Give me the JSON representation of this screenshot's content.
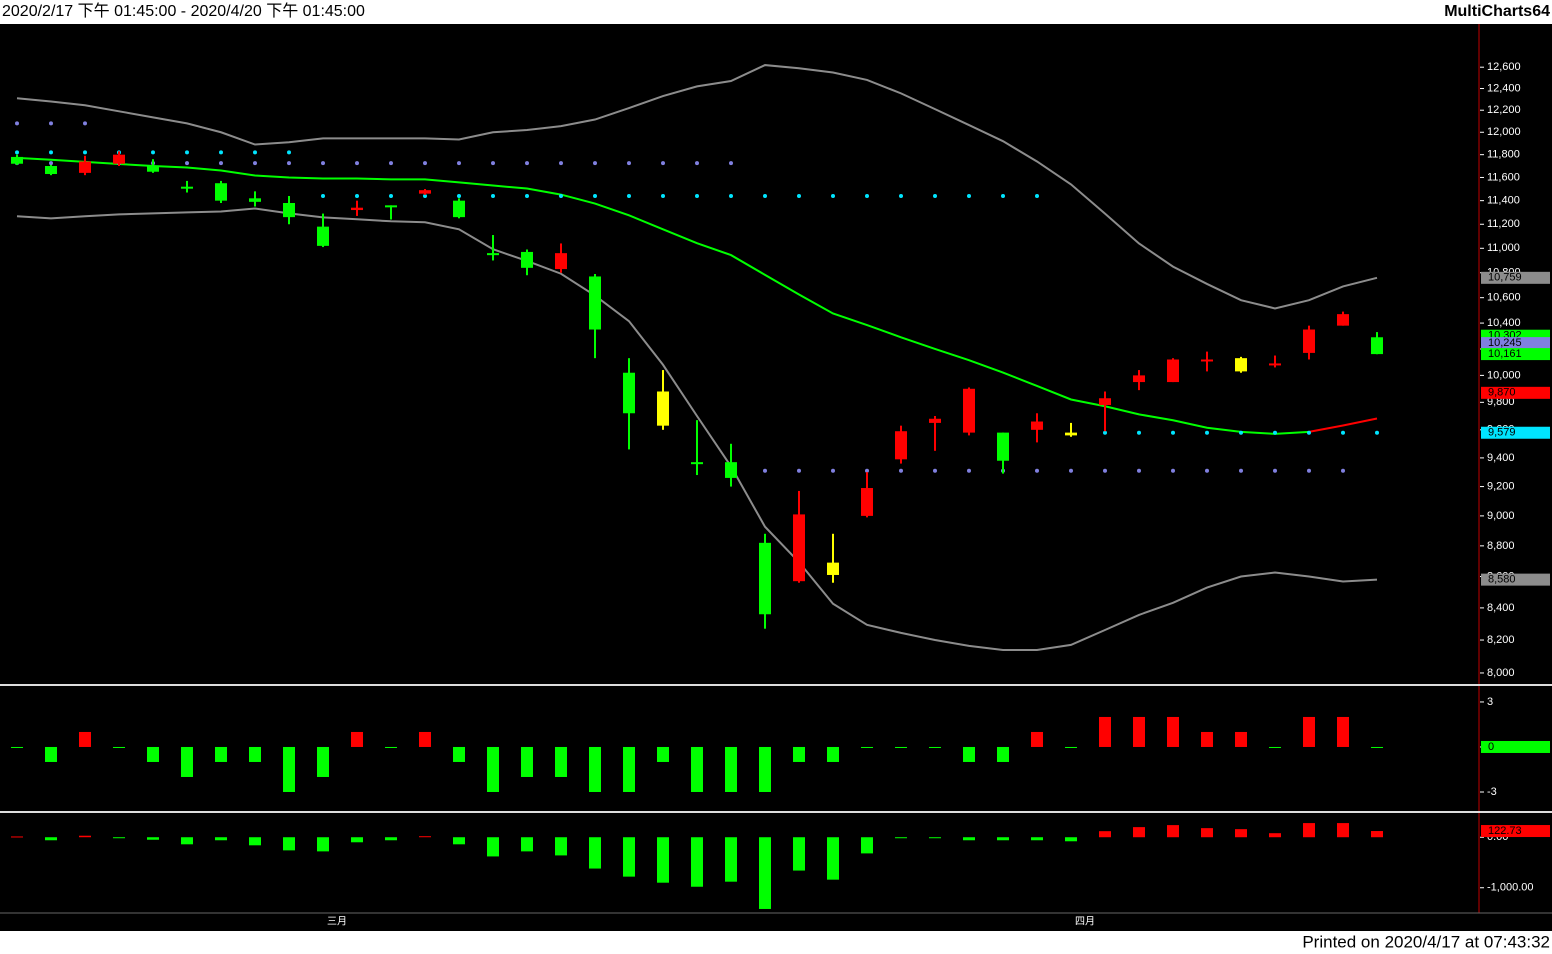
{
  "header": {
    "range": "2020/2/17 下午 01:45:00 - 2020/4/20 下午 01:45:00",
    "app": "MultiCharts64"
  },
  "footer": "Printed on 2020/4/17 at 07:43:32",
  "chart_data": [
    {
      "type": "candlestick",
      "log_scale": true,
      "categories": [
        null,
        null,
        null,
        null,
        null,
        null,
        null,
        null,
        null,
        null,
        "三月",
        null,
        null,
        null,
        null,
        null,
        null,
        null,
        null,
        null,
        null,
        null,
        null,
        null,
        null,
        null,
        null,
        null,
        null,
        null,
        null,
        null,
        "四月",
        null,
        null,
        null,
        null,
        null,
        null,
        null,
        null
      ],
      "open": [
        11780,
        11700,
        11640,
        11720,
        11700,
        11520,
        11550,
        11420,
        11380,
        11180,
        11320,
        11360,
        11460,
        11400,
        10960,
        10970,
        10830,
        10770,
        10020,
        9880,
        9370,
        9370,
        8820,
        8570,
        8690,
        9000,
        9390,
        9650,
        9580,
        9580,
        9600,
        9580,
        9780,
        9950,
        9950,
        10110,
        10130,
        10080,
        10170,
        10380,
        10290
      ],
      "high": [
        11800,
        11710,
        11790,
        11830,
        11760,
        11570,
        11570,
        11480,
        11440,
        11290,
        11400,
        11360,
        11500,
        11420,
        11110,
        10990,
        11040,
        10790,
        10130,
        10040,
        9670,
        9500,
        8880,
        9170,
        8880,
        9300,
        9630,
        9700,
        9910,
        9580,
        9720,
        9650,
        9880,
        10040,
        10130,
        10180,
        10140,
        10150,
        10380,
        10490,
        10330
      ],
      "low": [
        11710,
        11620,
        11620,
        11700,
        11640,
        11470,
        11380,
        11350,
        11200,
        11010,
        11270,
        11240,
        11450,
        11250,
        10900,
        10780,
        10800,
        10130,
        9460,
        9600,
        9280,
        9200,
        8270,
        8560,
        8560,
        8990,
        9360,
        9450,
        9560,
        9290,
        9510,
        9550,
        9590,
        9890,
        9950,
        10030,
        10020,
        10060,
        10120,
        10380,
        10160
      ],
      "close": [
        11720,
        11630,
        11740,
        11800,
        11650,
        11510,
        11400,
        11390,
        11260,
        11020,
        11340,
        11350,
        11490,
        11260,
        10950,
        10840,
        10960,
        10350,
        9720,
        9630,
        9360,
        9260,
        8360,
        9010,
        8610,
        9190,
        9590,
        9680,
        9900,
        9380,
        9660,
        9560,
        9830,
        10000,
        10120,
        10120,
        10030,
        10090,
        10350,
        10470,
        10161
      ],
      "candle_colors": [
        "#00ff00",
        "#00ff00",
        "#ff0000",
        "#ff0000",
        "#00ff00",
        "#00ff00",
        "#00ff00",
        "#00ff00",
        "#00ff00",
        "#00ff00",
        "#ff0000",
        "#00ff00",
        "#ff0000",
        "#00ff00",
        "#00ff00",
        "#00ff00",
        "#ff0000",
        "#00ff00",
        "#00ff00",
        "#ffff00",
        "#00ff00",
        "#00ff00",
        "#00ff00",
        "#ff0000",
        "#ffff00",
        "#ff0000",
        "#ff0000",
        "#ff0000",
        "#ff0000",
        "#00ff00",
        "#ff0000",
        "#ffff00",
        "#ff0000",
        "#ff0000",
        "#ff0000",
        "#ff0000",
        "#ffff00",
        "#ff0000",
        "#ff0000",
        "#ff0000",
        "#00ff00"
      ],
      "lines": [
        {
          "color": "#8c8c8c",
          "values": [
            12310,
            12280,
            12245,
            12190,
            12135,
            12080,
            12000,
            11890,
            11910,
            11945,
            11945,
            11945,
            11945,
            11935,
            12000,
            12020,
            12055,
            12115,
            12220,
            12330,
            12420,
            12470,
            12620,
            12590,
            12550,
            12480,
            12355,
            12210,
            12065,
            11920,
            11740,
            11540,
            11290,
            11040,
            10850,
            10710,
            10580,
            10515,
            10580,
            10690,
            10759
          ]
        },
        {
          "color": "#8c8c8c",
          "values": [
            11267,
            11250,
            11267,
            11283,
            11292,
            11300,
            11308,
            11333,
            11292,
            11258,
            11242,
            11225,
            11217,
            11158,
            10992,
            10896,
            10792,
            10617,
            10415,
            10080,
            9700,
            9340,
            8927,
            8693,
            8426,
            8294,
            8244,
            8200,
            8164,
            8139,
            8139,
            8170,
            8262,
            8356,
            8432,
            8529,
            8600,
            8626,
            8600,
            8568,
            8580
          ]
        },
        {
          "color": "#00ff00",
          "values": [
            11772,
            11755,
            11736,
            11718,
            11700,
            11687,
            11661,
            11617,
            11600,
            11591,
            11591,
            11583,
            11583,
            11557,
            11530,
            11504,
            11452,
            11375,
            11275,
            11158,
            11042,
            10944,
            10783,
            10625,
            10475,
            10385,
            10290,
            10200,
            10115,
            10021,
            9921,
            9821,
            9771,
            9712,
            9669,
            9615,
            9585,
            9571,
            9585,
            9631,
            9682
          ],
          "colors": [
            null,
            "#00ff00",
            "#00ff00",
            "#00ff00",
            "#00ff00",
            "#00ff00",
            "#00ff00",
            "#00ff00",
            "#00ff00",
            "#00ff00",
            "#00ff00",
            "#00ff00",
            "#00ff00",
            "#00ff00",
            "#00ff00",
            "#00ff00",
            "#00ff00",
            "#00ff00",
            "#00ff00",
            "#00ff00",
            "#00ff00",
            "#00ff00",
            "#00ff00",
            "#00ff00",
            "#00ff00",
            "#00ff00",
            "#00ff00",
            "#00ff00",
            "#00ff00",
            "#00ff00",
            "#00ff00",
            "#00ff00",
            "#00ff00",
            "#00ff00",
            "#00ff00",
            "#00ff00",
            "#00ff00",
            "#00ff00",
            "#00ff00",
            "#ff0000",
            "#ff0000"
          ]
        }
      ],
      "dots": [
        {
          "color": "#8080e0",
          "values": [
            12080,
            12080,
            12080,
            null,
            null,
            null,
            null,
            null,
            null,
            null,
            null,
            null,
            null,
            null,
            null,
            null,
            null,
            null,
            null,
            null,
            null,
            null,
            null,
            null,
            null,
            null,
            null,
            null,
            null,
            null,
            null,
            null,
            null,
            null,
            null,
            null,
            null,
            null,
            null,
            null,
            null
          ]
        },
        {
          "color": "#00e5ff",
          "values": [
            11820,
            11820,
            11820,
            11820,
            11820,
            11820,
            11820,
            11820,
            11820,
            null,
            null,
            null,
            null,
            null,
            null,
            null,
            null,
            null,
            null,
            null,
            null,
            null,
            null,
            null,
            null,
            null,
            null,
            null,
            null,
            null,
            null,
            null,
            null,
            null,
            null,
            null,
            null,
            null,
            null,
            null,
            null
          ]
        },
        {
          "color": "#8080e0",
          "values": [
            11725,
            11725,
            11725,
            11725,
            11725,
            11725,
            11725,
            11725,
            11725,
            11725,
            11725,
            11725,
            11725,
            11725,
            11725,
            11725,
            11725,
            11725,
            11725,
            11725,
            11725,
            11725,
            null,
            null,
            null,
            null,
            null,
            null,
            null,
            null,
            null,
            null,
            null,
            null,
            null,
            null,
            null,
            null,
            null,
            null,
            null
          ]
        },
        {
          "color": "#00e5ff",
          "values": [
            null,
            null,
            null,
            null,
            null,
            null,
            null,
            null,
            null,
            11440,
            11440,
            11440,
            11440,
            11440,
            11440,
            11440,
            11440,
            11440,
            11440,
            11440,
            11440,
            11440,
            11440,
            11440,
            11440,
            11440,
            11440,
            11440,
            11440,
            11440,
            11440,
            null,
            null,
            null,
            null,
            null,
            null,
            null,
            null,
            null,
            null
          ]
        },
        {
          "color": "#00e5ff",
          "values": [
            null,
            null,
            null,
            null,
            null,
            null,
            null,
            null,
            null,
            null,
            null,
            null,
            null,
            null,
            null,
            null,
            null,
            null,
            null,
            null,
            null,
            null,
            null,
            null,
            null,
            null,
            null,
            null,
            null,
            null,
            null,
            null,
            9579,
            9579,
            9579,
            9579,
            9579,
            9579,
            9579,
            9579,
            9579
          ]
        },
        {
          "color": "#8080e0",
          "values": [
            null,
            null,
            null,
            null,
            null,
            null,
            null,
            null,
            null,
            null,
            null,
            null,
            null,
            null,
            null,
            null,
            null,
            null,
            null,
            null,
            null,
            null,
            9310,
            9310,
            9310,
            9310,
            9310,
            9310,
            9310,
            9310,
            9310,
            9310,
            9310,
            9310,
            9310,
            9310,
            9310,
            9310,
            9310,
            9310,
            null
          ]
        }
      ],
      "ylim": [
        7940,
        13005
      ],
      "yticks": [
        {
          "value": 8000,
          "label": "8,000"
        },
        {
          "value": 8200,
          "label": "8,200"
        },
        {
          "value": 8400,
          "label": "8,400"
        },
        {
          "value": 8600,
          "label": "8,600"
        },
        {
          "value": 8800,
          "label": "8,800"
        },
        {
          "value": 9000,
          "label": "9,000"
        },
        {
          "value": 9200,
          "label": "9,200"
        },
        {
          "value": 9400,
          "label": "9,400"
        },
        {
          "value": 9600,
          "label": "9,600"
        },
        {
          "value": 9800,
          "label": "9,800"
        },
        {
          "value": 10000,
          "label": "10,000"
        },
        {
          "value": 10200,
          "label": "10,200"
        },
        {
          "value": 10400,
          "label": "10,400"
        },
        {
          "value": 10600,
          "label": "10,600"
        },
        {
          "value": 10800,
          "label": "10,800"
        },
        {
          "value": 11000,
          "label": "11,000"
        },
        {
          "value": 11200,
          "label": "11,200"
        },
        {
          "value": 11400,
          "label": "11,400"
        },
        {
          "value": 11600,
          "label": "11,600"
        },
        {
          "value": 11800,
          "label": "11,800"
        },
        {
          "value": 12000,
          "label": "12,000"
        },
        {
          "value": 12200,
          "label": "12,200"
        },
        {
          "value": 12400,
          "label": "12,400"
        },
        {
          "value": 12600,
          "label": "12,600"
        }
      ],
      "price_markers": [
        {
          "value": 10759,
          "label": "10,759",
          "color": "#8c8c8c"
        },
        {
          "value": 10302,
          "label": "10,302",
          "color": "#00ff00"
        },
        {
          "value": 10245,
          "label": "10,245",
          "color": "#8080e0"
        },
        {
          "value": 10161,
          "label": "10,161",
          "color": "#00ff00"
        },
        {
          "value": 9870,
          "label": "9,870",
          "color": "#ff0000"
        },
        {
          "value": 9579,
          "label": "9,579",
          "color": "#00e5ff"
        },
        {
          "value": 8580,
          "label": "8,580",
          "color": "#8c8c8c"
        }
      ]
    },
    {
      "type": "bar",
      "up_color": "#ff0000",
      "down_color": "#00ff00",
      "values": [
        0,
        -1,
        1,
        0,
        -1,
        -2,
        -1,
        -1,
        -3,
        -2,
        1,
        0,
        1,
        -1,
        -3,
        -2,
        -2,
        -3,
        -3,
        -1,
        -3,
        -3,
        -3,
        -1,
        -1,
        0,
        0,
        0,
        -1,
        -1,
        1,
        0,
        2,
        2,
        2,
        1,
        1,
        0,
        2,
        2,
        0
      ],
      "ylim": [
        -4.2,
        3.93
      ],
      "yticks": [
        3,
        0,
        -3
      ],
      "price_markers": [
        {
          "value": 0,
          "label": "0",
          "color": "#00ff00"
        }
      ]
    },
    {
      "type": "bar",
      "up_color": "#ff0000",
      "down_color": "#00ff00",
      "values": [
        15,
        -60,
        30,
        0,
        -50,
        -140,
        -60,
        -160,
        -260,
        -280,
        -100,
        -60,
        20,
        -140,
        -380,
        -280,
        -360,
        -620,
        -780,
        -900,
        -980,
        -880,
        -1420,
        -660,
        -840,
        -320,
        0,
        0,
        -60,
        -60,
        -60,
        -80,
        120,
        200,
        240,
        180,
        160,
        80,
        280,
        280,
        122.73
      ],
      "ylim": [
        -1480,
        440
      ],
      "yticks": [
        {
          "value": 0,
          "label": "0.00"
        },
        {
          "value": -1000,
          "label": "-1,000.00"
        }
      ],
      "price_markers": [
        {
          "value": 122.73,
          "label": "122.73",
          "color": "#ff0000"
        }
      ]
    }
  ]
}
